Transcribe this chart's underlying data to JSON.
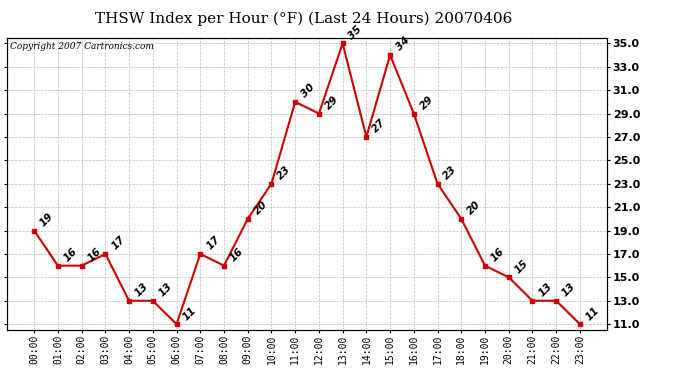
{
  "title": "THSW Index per Hour (°F) (Last 24 Hours) 20070406",
  "copyright_text": "Copyright 2007 Cartronics.com",
  "hours": [
    "00:00",
    "01:00",
    "02:00",
    "03:00",
    "04:00",
    "05:00",
    "06:00",
    "07:00",
    "08:00",
    "09:00",
    "10:00",
    "11:00",
    "12:00",
    "13:00",
    "14:00",
    "15:00",
    "16:00",
    "17:00",
    "18:00",
    "19:00",
    "20:00",
    "21:00",
    "22:00",
    "23:00"
  ],
  "values": [
    19,
    16,
    16,
    17,
    13,
    13,
    11,
    17,
    16,
    20,
    23,
    30,
    29,
    35,
    27,
    34,
    29,
    23,
    20,
    16,
    15,
    13,
    13,
    11
  ],
  "line_color": "#cc0000",
  "marker_color": "#cc0000",
  "line_width": 1.5,
  "ylim_min": 11.0,
  "ylim_max": 35.0,
  "ytick_step": 2.0,
  "background_color": "#ffffff",
  "grid_color": "#bbbbbb",
  "title_fontsize": 11,
  "label_fontsize": 7,
  "copyright_fontsize": 6.5,
  "annotation_fontsize": 7.5
}
